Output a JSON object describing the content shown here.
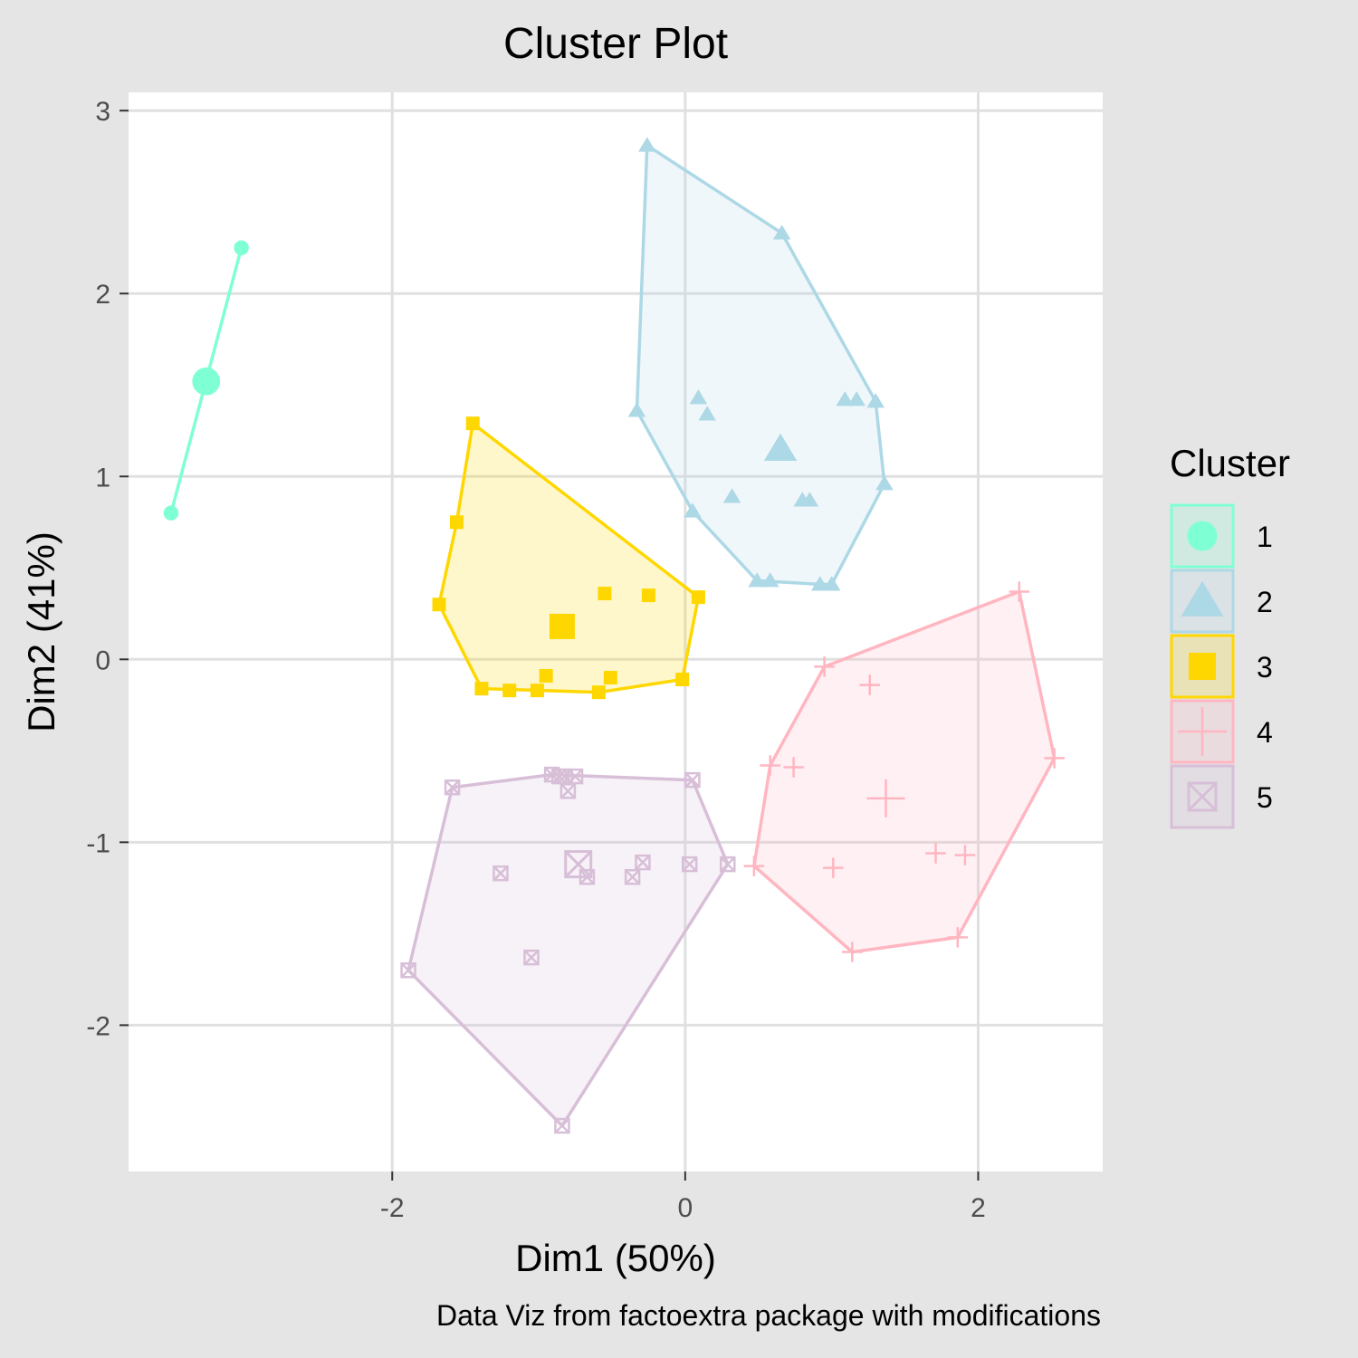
{
  "chart_data": {
    "type": "scatter",
    "title": "Cluster Plot",
    "xlabel": "Dim1 (50%)",
    "ylabel": "Dim2 (41%)",
    "caption": "Data Viz from factoextra package with modifications",
    "xlim": [
      -3.8,
      2.85
    ],
    "ylim": [
      -2.8,
      3.1
    ],
    "x_ticks": [
      -2,
      0,
      2
    ],
    "x_tick_labels": [
      "-2",
      "0",
      "2"
    ],
    "y_ticks": [
      -2,
      -1,
      0,
      1,
      2,
      3
    ],
    "y_tick_labels": [
      "-2",
      "-1",
      "0",
      "1",
      "2",
      "3"
    ],
    "grid": true,
    "legend_title": "Cluster",
    "legend_position": "right",
    "clusters": [
      {
        "name": "1",
        "shape": "circle",
        "color": "#7fffd4",
        "centroid": [
          -3.27,
          1.52
        ],
        "points": [
          [
            -3.03,
            2.25
          ],
          [
            -3.51,
            0.8
          ]
        ],
        "hull": [
          [
            -3.03,
            2.25
          ],
          [
            -3.51,
            0.8
          ]
        ]
      },
      {
        "name": "2",
        "shape": "triangle",
        "color": "#add8e6",
        "centroid": [
          0.65,
          1.15
        ],
        "points": [
          [
            -0.26,
            2.81
          ],
          [
            0.66,
            2.33
          ],
          [
            -0.33,
            1.36
          ],
          [
            0.09,
            1.43
          ],
          [
            0.15,
            1.34
          ],
          [
            1.09,
            1.42
          ],
          [
            1.17,
            1.42
          ],
          [
            1.3,
            1.41
          ],
          [
            1.36,
            0.96
          ],
          [
            0.05,
            0.81
          ],
          [
            0.32,
            0.89
          ],
          [
            0.8,
            0.87
          ],
          [
            0.85,
            0.87
          ],
          [
            0.49,
            0.43
          ],
          [
            0.58,
            0.43
          ],
          [
            0.92,
            0.41
          ],
          [
            1.0,
            0.41
          ]
        ],
        "hull": [
          [
            -0.26,
            2.81
          ],
          [
            0.66,
            2.33
          ],
          [
            1.3,
            1.41
          ],
          [
            1.36,
            0.96
          ],
          [
            1.0,
            0.41
          ],
          [
            0.92,
            0.41
          ],
          [
            0.49,
            0.43
          ],
          [
            0.05,
            0.81
          ],
          [
            -0.33,
            1.36
          ]
        ]
      },
      {
        "name": "3",
        "shape": "square",
        "color": "#ffd700",
        "centroid": [
          -0.84,
          0.18
        ],
        "points": [
          [
            -1.45,
            1.29
          ],
          [
            -1.56,
            0.75
          ],
          [
            -1.68,
            0.3
          ],
          [
            -0.55,
            0.36
          ],
          [
            -0.25,
            0.35
          ],
          [
            0.09,
            0.34
          ],
          [
            -0.95,
            -0.09
          ],
          [
            -0.51,
            -0.1
          ],
          [
            -0.02,
            -0.11
          ],
          [
            -1.39,
            -0.16
          ],
          [
            -1.2,
            -0.17
          ],
          [
            -1.01,
            -0.17
          ],
          [
            -0.59,
            -0.18
          ]
        ],
        "hull": [
          [
            -1.45,
            1.29
          ],
          [
            0.09,
            0.34
          ],
          [
            -0.02,
            -0.11
          ],
          [
            -0.59,
            -0.18
          ],
          [
            -1.39,
            -0.16
          ],
          [
            -1.68,
            0.3
          ],
          [
            -1.56,
            0.75
          ]
        ]
      },
      {
        "name": "4",
        "shape": "plus",
        "color": "#ffb6c1",
        "centroid": [
          1.37,
          -0.76
        ],
        "points": [
          [
            2.28,
            0.37
          ],
          [
            0.95,
            -0.04
          ],
          [
            1.26,
            -0.14
          ],
          [
            2.52,
            -0.54
          ],
          [
            0.58,
            -0.58
          ],
          [
            0.74,
            -0.59
          ],
          [
            1.71,
            -1.06
          ],
          [
            1.91,
            -1.07
          ],
          [
            0.47,
            -1.13
          ],
          [
            1.01,
            -1.14
          ],
          [
            1.86,
            -1.52
          ],
          [
            1.14,
            -1.6
          ]
        ],
        "hull": [
          [
            2.28,
            0.37
          ],
          [
            2.52,
            -0.54
          ],
          [
            1.86,
            -1.52
          ],
          [
            1.14,
            -1.6
          ],
          [
            0.47,
            -1.13
          ],
          [
            0.58,
            -0.58
          ],
          [
            0.95,
            -0.04
          ]
        ]
      },
      {
        "name": "5",
        "shape": "square-cross",
        "color": "#d8bfd8",
        "centroid": [
          -0.73,
          -1.12
        ],
        "points": [
          [
            -0.91,
            -0.63
          ],
          [
            -0.86,
            -0.64
          ],
          [
            -0.82,
            -0.64
          ],
          [
            -0.75,
            -0.64
          ],
          [
            -0.8,
            -0.72
          ],
          [
            -1.59,
            -0.7
          ],
          [
            0.05,
            -0.66
          ],
          [
            -0.29,
            -1.11
          ],
          [
            0.03,
            -1.12
          ],
          [
            0.29,
            -1.12
          ],
          [
            -1.26,
            -1.17
          ],
          [
            -0.67,
            -1.19
          ],
          [
            -0.36,
            -1.19
          ],
          [
            -1.05,
            -1.63
          ],
          [
            -1.89,
            -1.7
          ],
          [
            -0.84,
            -2.55
          ]
        ],
        "hull": [
          [
            -0.91,
            -0.63
          ],
          [
            0.05,
            -0.66
          ],
          [
            0.29,
            -1.12
          ],
          [
            -0.84,
            -2.55
          ],
          [
            -1.89,
            -1.7
          ],
          [
            -1.59,
            -0.7
          ]
        ]
      }
    ]
  }
}
